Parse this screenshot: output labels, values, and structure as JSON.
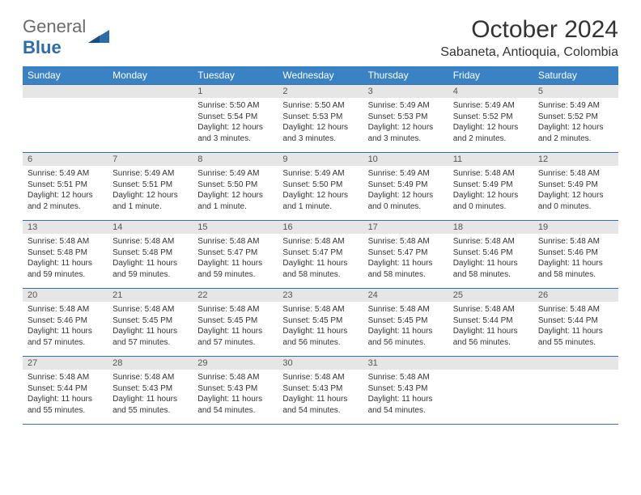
{
  "brand": {
    "word1": "General",
    "word2": "Blue"
  },
  "title": "October 2024",
  "location": "Sabaneta, Antioquia, Colombia",
  "colors": {
    "header_bg": "#3b82c4",
    "header_text": "#ffffff",
    "row_border": "#3b6fa3",
    "daynum_bg": "#e6e6e6",
    "brand_gray": "#6b6b6b",
    "brand_blue": "#2c6ca8"
  },
  "day_headers": [
    "Sunday",
    "Monday",
    "Tuesday",
    "Wednesday",
    "Thursday",
    "Friday",
    "Saturday"
  ],
  "weeks": [
    [
      {
        "blank": true
      },
      {
        "blank": true
      },
      {
        "num": "1",
        "sunrise": "5:50 AM",
        "sunset": "5:54 PM",
        "daylight": "12 hours and 3 minutes."
      },
      {
        "num": "2",
        "sunrise": "5:50 AM",
        "sunset": "5:53 PM",
        "daylight": "12 hours and 3 minutes."
      },
      {
        "num": "3",
        "sunrise": "5:49 AM",
        "sunset": "5:53 PM",
        "daylight": "12 hours and 3 minutes."
      },
      {
        "num": "4",
        "sunrise": "5:49 AM",
        "sunset": "5:52 PM",
        "daylight": "12 hours and 2 minutes."
      },
      {
        "num": "5",
        "sunrise": "5:49 AM",
        "sunset": "5:52 PM",
        "daylight": "12 hours and 2 minutes."
      }
    ],
    [
      {
        "num": "6",
        "sunrise": "5:49 AM",
        "sunset": "5:51 PM",
        "daylight": "12 hours and 2 minutes."
      },
      {
        "num": "7",
        "sunrise": "5:49 AM",
        "sunset": "5:51 PM",
        "daylight": "12 hours and 1 minute."
      },
      {
        "num": "8",
        "sunrise": "5:49 AM",
        "sunset": "5:50 PM",
        "daylight": "12 hours and 1 minute."
      },
      {
        "num": "9",
        "sunrise": "5:49 AM",
        "sunset": "5:50 PM",
        "daylight": "12 hours and 1 minute."
      },
      {
        "num": "10",
        "sunrise": "5:49 AM",
        "sunset": "5:49 PM",
        "daylight": "12 hours and 0 minutes."
      },
      {
        "num": "11",
        "sunrise": "5:48 AM",
        "sunset": "5:49 PM",
        "daylight": "12 hours and 0 minutes."
      },
      {
        "num": "12",
        "sunrise": "5:48 AM",
        "sunset": "5:49 PM",
        "daylight": "12 hours and 0 minutes."
      }
    ],
    [
      {
        "num": "13",
        "sunrise": "5:48 AM",
        "sunset": "5:48 PM",
        "daylight": "11 hours and 59 minutes."
      },
      {
        "num": "14",
        "sunrise": "5:48 AM",
        "sunset": "5:48 PM",
        "daylight": "11 hours and 59 minutes."
      },
      {
        "num": "15",
        "sunrise": "5:48 AM",
        "sunset": "5:47 PM",
        "daylight": "11 hours and 59 minutes."
      },
      {
        "num": "16",
        "sunrise": "5:48 AM",
        "sunset": "5:47 PM",
        "daylight": "11 hours and 58 minutes."
      },
      {
        "num": "17",
        "sunrise": "5:48 AM",
        "sunset": "5:47 PM",
        "daylight": "11 hours and 58 minutes."
      },
      {
        "num": "18",
        "sunrise": "5:48 AM",
        "sunset": "5:46 PM",
        "daylight": "11 hours and 58 minutes."
      },
      {
        "num": "19",
        "sunrise": "5:48 AM",
        "sunset": "5:46 PM",
        "daylight": "11 hours and 58 minutes."
      }
    ],
    [
      {
        "num": "20",
        "sunrise": "5:48 AM",
        "sunset": "5:46 PM",
        "daylight": "11 hours and 57 minutes."
      },
      {
        "num": "21",
        "sunrise": "5:48 AM",
        "sunset": "5:45 PM",
        "daylight": "11 hours and 57 minutes."
      },
      {
        "num": "22",
        "sunrise": "5:48 AM",
        "sunset": "5:45 PM",
        "daylight": "11 hours and 57 minutes."
      },
      {
        "num": "23",
        "sunrise": "5:48 AM",
        "sunset": "5:45 PM",
        "daylight": "11 hours and 56 minutes."
      },
      {
        "num": "24",
        "sunrise": "5:48 AM",
        "sunset": "5:45 PM",
        "daylight": "11 hours and 56 minutes."
      },
      {
        "num": "25",
        "sunrise": "5:48 AM",
        "sunset": "5:44 PM",
        "daylight": "11 hours and 56 minutes."
      },
      {
        "num": "26",
        "sunrise": "5:48 AM",
        "sunset": "5:44 PM",
        "daylight": "11 hours and 55 minutes."
      }
    ],
    [
      {
        "num": "27",
        "sunrise": "5:48 AM",
        "sunset": "5:44 PM",
        "daylight": "11 hours and 55 minutes."
      },
      {
        "num": "28",
        "sunrise": "5:48 AM",
        "sunset": "5:43 PM",
        "daylight": "11 hours and 55 minutes."
      },
      {
        "num": "29",
        "sunrise": "5:48 AM",
        "sunset": "5:43 PM",
        "daylight": "11 hours and 54 minutes."
      },
      {
        "num": "30",
        "sunrise": "5:48 AM",
        "sunset": "5:43 PM",
        "daylight": "11 hours and 54 minutes."
      },
      {
        "num": "31",
        "sunrise": "5:48 AM",
        "sunset": "5:43 PM",
        "daylight": "11 hours and 54 minutes."
      },
      {
        "blank": true
      },
      {
        "blank": true
      }
    ]
  ],
  "labels": {
    "sunrise": "Sunrise: ",
    "sunset": "Sunset: ",
    "daylight": "Daylight: "
  }
}
